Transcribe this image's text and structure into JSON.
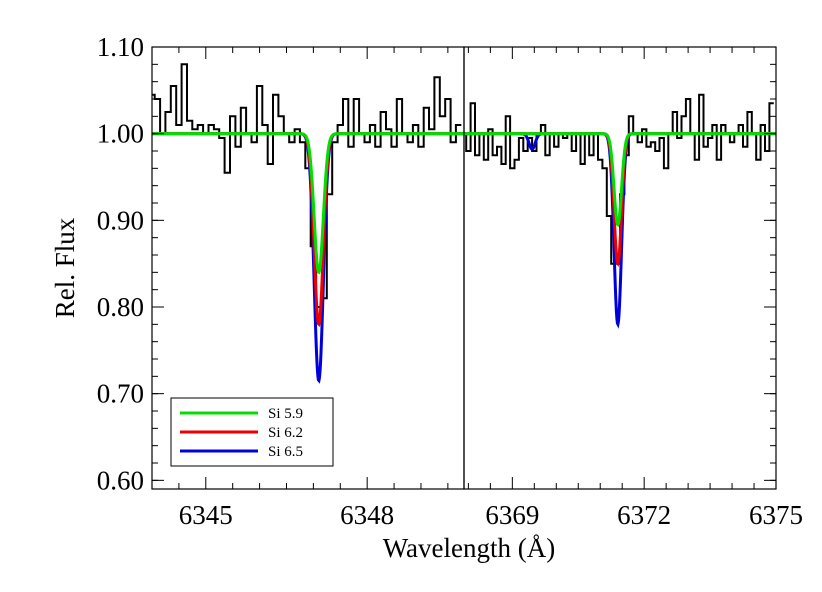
{
  "chart_data": {
    "type": "line",
    "xlabel": "Wavelength (Å)",
    "ylabel": "Rel. Flux",
    "ylim": [
      0.59,
      1.1
    ],
    "yticks": [
      "1.10",
      "1.00",
      "0.90",
      "0.80",
      "0.70",
      "0.60"
    ],
    "ytick_values": [
      1.1,
      1.0,
      0.9,
      0.8,
      0.7,
      0.6
    ],
    "grid": false,
    "legend_position": "bottom-left",
    "panels": [
      {
        "xlim": [
          6344.0,
          6349.8
        ],
        "xticks": [
          "6345",
          "6348"
        ],
        "xtick_values": [
          6345,
          6348
        ],
        "lines": [
          {
            "center": 6347.1,
            "sigma": 0.085,
            "depth_by_series": [
              0.16,
              0.22,
              0.285
            ]
          }
        ],
        "observed": [
          {
            "x": 6344.0,
            "y": 1.045
          },
          {
            "x": 6344.1,
            "y": 1.04
          },
          {
            "x": 6344.2,
            "y": 1.0
          },
          {
            "x": 6344.3,
            "y": 1.025
          },
          {
            "x": 6344.4,
            "y": 1.055
          },
          {
            "x": 6344.5,
            "y": 1.01
          },
          {
            "x": 6344.6,
            "y": 1.08
          },
          {
            "x": 6344.7,
            "y": 1.015
          },
          {
            "x": 6344.8,
            "y": 1.005
          },
          {
            "x": 6344.9,
            "y": 1.01
          },
          {
            "x": 6345.0,
            "y": 1.0
          },
          {
            "x": 6345.1,
            "y": 1.01
          },
          {
            "x": 6345.2,
            "y": 1.005
          },
          {
            "x": 6345.3,
            "y": 0.995
          },
          {
            "x": 6345.4,
            "y": 0.955
          },
          {
            "x": 6345.5,
            "y": 1.02
          },
          {
            "x": 6345.6,
            "y": 0.985
          },
          {
            "x": 6345.7,
            "y": 1.03
          },
          {
            "x": 6345.8,
            "y": 1.0
          },
          {
            "x": 6345.9,
            "y": 0.99
          },
          {
            "x": 6346.0,
            "y": 1.055
          },
          {
            "x": 6346.1,
            "y": 1.01
          },
          {
            "x": 6346.2,
            "y": 0.965
          },
          {
            "x": 6346.3,
            "y": 1.045
          },
          {
            "x": 6346.4,
            "y": 1.02
          },
          {
            "x": 6346.5,
            "y": 1.0
          },
          {
            "x": 6346.6,
            "y": 0.99
          },
          {
            "x": 6346.7,
            "y": 1.005
          },
          {
            "x": 6346.8,
            "y": 0.99
          },
          {
            "x": 6346.9,
            "y": 0.96
          },
          {
            "x": 6347.0,
            "y": 0.87
          },
          {
            "x": 6347.1,
            "y": 0.8
          },
          {
            "x": 6347.2,
            "y": 0.81
          },
          {
            "x": 6347.3,
            "y": 0.93
          },
          {
            "x": 6347.4,
            "y": 0.99
          },
          {
            "x": 6347.5,
            "y": 1.01
          },
          {
            "x": 6347.6,
            "y": 1.04
          },
          {
            "x": 6347.7,
            "y": 0.985
          },
          {
            "x": 6347.8,
            "y": 1.04
          },
          {
            "x": 6347.9,
            "y": 1.0
          },
          {
            "x": 6348.0,
            "y": 0.99
          },
          {
            "x": 6348.1,
            "y": 1.01
          },
          {
            "x": 6348.2,
            "y": 0.985
          },
          {
            "x": 6348.3,
            "y": 1.025
          },
          {
            "x": 6348.4,
            "y": 1.005
          },
          {
            "x": 6348.5,
            "y": 0.985
          },
          {
            "x": 6348.6,
            "y": 1.04
          },
          {
            "x": 6348.7,
            "y": 1.0
          },
          {
            "x": 6348.8,
            "y": 0.99
          },
          {
            "x": 6348.9,
            "y": 1.01
          },
          {
            "x": 6349.0,
            "y": 0.985
          },
          {
            "x": 6349.1,
            "y": 1.03
          },
          {
            "x": 6349.2,
            "y": 1.005
          },
          {
            "x": 6349.3,
            "y": 1.065
          },
          {
            "x": 6349.4,
            "y": 1.02
          },
          {
            "x": 6349.5,
            "y": 1.04
          },
          {
            "x": 6349.6,
            "y": 0.99
          },
          {
            "x": 6349.7,
            "y": 1.01
          }
        ]
      },
      {
        "xlim": [
          6367.9,
          6375.0
        ],
        "xticks": [
          "6369",
          "6372",
          "6375"
        ],
        "xtick_values": [
          6369,
          6372,
          6375
        ],
        "lines": [
          {
            "center": 6369.45,
            "sigma": 0.07,
            "depth_by_series": [
              0.0,
              0.0,
              0.018
            ]
          },
          {
            "center": 6371.4,
            "sigma": 0.085,
            "depth_by_series": [
              0.105,
              0.15,
              0.22
            ]
          }
        ],
        "observed": [
          {
            "x": 6367.9,
            "y": 1.0
          },
          {
            "x": 6368.0,
            "y": 0.98
          },
          {
            "x": 6368.1,
            "y": 1.035
          },
          {
            "x": 6368.2,
            "y": 0.975
          },
          {
            "x": 6368.3,
            "y": 1.0
          },
          {
            "x": 6368.4,
            "y": 0.97
          },
          {
            "x": 6368.5,
            "y": 1.005
          },
          {
            "x": 6368.6,
            "y": 0.975
          },
          {
            "x": 6368.7,
            "y": 0.985
          },
          {
            "x": 6368.8,
            "y": 0.965
          },
          {
            "x": 6368.9,
            "y": 1.02
          },
          {
            "x": 6369.0,
            "y": 0.96
          },
          {
            "x": 6369.1,
            "y": 0.97
          },
          {
            "x": 6369.2,
            "y": 0.995
          },
          {
            "x": 6369.3,
            "y": 0.98
          },
          {
            "x": 6369.4,
            "y": 0.995
          },
          {
            "x": 6369.5,
            "y": 0.98
          },
          {
            "x": 6369.6,
            "y": 1.0
          },
          {
            "x": 6369.7,
            "y": 1.01
          },
          {
            "x": 6369.8,
            "y": 0.975
          },
          {
            "x": 6369.9,
            "y": 1.0
          },
          {
            "x": 6370.0,
            "y": 0.985
          },
          {
            "x": 6370.1,
            "y": 1.0
          },
          {
            "x": 6370.2,
            "y": 0.995
          },
          {
            "x": 6370.3,
            "y": 1.0
          },
          {
            "x": 6370.4,
            "y": 0.98
          },
          {
            "x": 6370.5,
            "y": 1.0
          },
          {
            "x": 6370.6,
            "y": 0.965
          },
          {
            "x": 6370.7,
            "y": 1.0
          },
          {
            "x": 6370.8,
            "y": 0.975
          },
          {
            "x": 6370.9,
            "y": 1.0
          },
          {
            "x": 6371.0,
            "y": 0.97
          },
          {
            "x": 6371.1,
            "y": 0.96
          },
          {
            "x": 6371.2,
            "y": 0.905
          },
          {
            "x": 6371.3,
            "y": 0.85
          },
          {
            "x": 6371.4,
            "y": 0.85
          },
          {
            "x": 6371.5,
            "y": 0.93
          },
          {
            "x": 6371.6,
            "y": 0.975
          },
          {
            "x": 6371.7,
            "y": 1.02
          },
          {
            "x": 6371.8,
            "y": 1.0
          },
          {
            "x": 6371.9,
            "y": 0.99
          },
          {
            "x": 6372.0,
            "y": 1.005
          },
          {
            "x": 6372.1,
            "y": 0.985
          },
          {
            "x": 6372.2,
            "y": 0.99
          },
          {
            "x": 6372.3,
            "y": 0.98
          },
          {
            "x": 6372.4,
            "y": 0.995
          },
          {
            "x": 6372.5,
            "y": 0.96
          },
          {
            "x": 6372.6,
            "y": 1.0
          },
          {
            "x": 6372.7,
            "y": 1.025
          },
          {
            "x": 6372.8,
            "y": 0.995
          },
          {
            "x": 6372.9,
            "y": 1.02
          },
          {
            "x": 6373.0,
            "y": 1.04
          },
          {
            "x": 6373.1,
            "y": 1.0
          },
          {
            "x": 6373.2,
            "y": 0.97
          },
          {
            "x": 6373.3,
            "y": 1.045
          },
          {
            "x": 6373.4,
            "y": 0.985
          },
          {
            "x": 6373.5,
            "y": 0.995
          },
          {
            "x": 6373.6,
            "y": 1.01
          },
          {
            "x": 6373.7,
            "y": 0.97
          },
          {
            "x": 6373.8,
            "y": 1.01
          },
          {
            "x": 6373.9,
            "y": 1.0
          },
          {
            "x": 6374.0,
            "y": 0.99
          },
          {
            "x": 6374.1,
            "y": 1.0
          },
          {
            "x": 6374.2,
            "y": 1.01
          },
          {
            "x": 6374.3,
            "y": 0.985
          },
          {
            "x": 6374.4,
            "y": 1.025
          },
          {
            "x": 6374.5,
            "y": 1.0
          },
          {
            "x": 6374.6,
            "y": 0.97
          },
          {
            "x": 6374.7,
            "y": 1.01
          },
          {
            "x": 6374.8,
            "y": 0.98
          },
          {
            "x": 6374.9,
            "y": 1.035
          }
        ]
      }
    ],
    "series": [
      {
        "name": "Si 5.9",
        "color": "#00e000"
      },
      {
        "name": "Si 6.2",
        "color": "#ee0000"
      },
      {
        "name": "Si 6.5",
        "color": "#0000dd"
      }
    ],
    "observed_color": "#000000"
  }
}
